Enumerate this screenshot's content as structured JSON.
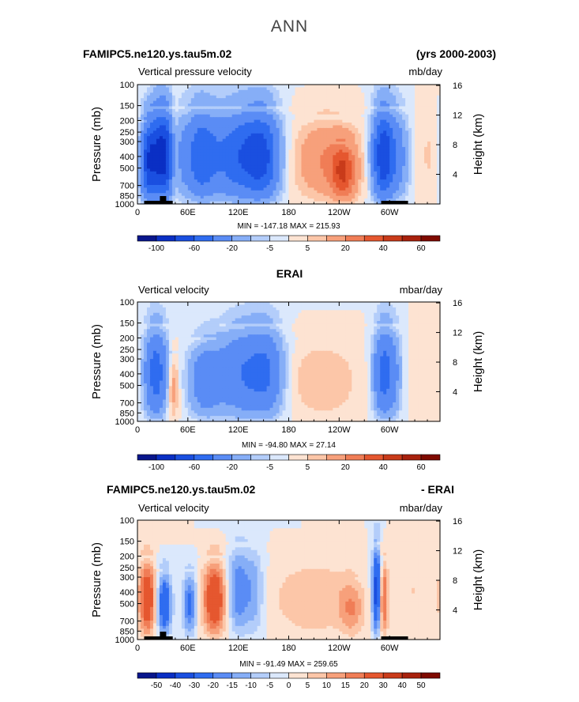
{
  "figure": {
    "title": "ANN",
    "colors": {
      "neg_strong": "#0a1a9a",
      "pos_strong": "#8a0000",
      "zero": "#ffffff",
      "coast": "#000000"
    }
  },
  "chart_data": [
    {
      "type": "heatmap",
      "title_left": "FAMIPC5.ne120.ys.tau5m.02",
      "title_right": "(yrs 2000-2003)",
      "variable": "Vertical pressure velocity",
      "units": "mb/day",
      "ylabel": "Pressure (mb)",
      "ylabel_right": "Height (km)",
      "xticks": [
        "0",
        "60E",
        "120E",
        "180",
        "120W",
        "60W"
      ],
      "xtick_values": [
        0,
        60,
        120,
        180,
        240,
        300
      ],
      "xlim": [
        0,
        360
      ],
      "yticks": [
        "100",
        "150",
        "200",
        "250",
        "300",
        "400",
        "500",
        "700",
        "850",
        "1000"
      ],
      "ytick_values": [
        100,
        150,
        200,
        250,
        300,
        400,
        500,
        700,
        850,
        1000
      ],
      "height_ticks": [
        "4",
        "8",
        "12",
        "16"
      ],
      "height_values": [
        4,
        8,
        12,
        16
      ],
      "min_text": "MIN = -147.18",
      "max_text": "MAX = 215.93",
      "colorbar_labels": [
        "-100",
        "-60",
        "-20",
        "-5",
        "5",
        "20",
        "40",
        "60"
      ],
      "colorbar_levels": 16,
      "features": [
        {
          "lon": 30,
          "amp": -95,
          "w": 13,
          "top": 150
        },
        {
          "lon": 12,
          "amp": -45,
          "w": 6,
          "top": 200
        },
        {
          "lon": 44,
          "amp": 35,
          "w": 5,
          "top": 150
        },
        {
          "lon": 75,
          "amp": -50,
          "w": 13,
          "top": 150
        },
        {
          "lon": 122,
          "amp": -55,
          "w": 24,
          "top": 150
        },
        {
          "lon": 150,
          "amp": -45,
          "w": 14,
          "top": 150
        },
        {
          "lon": 225,
          "amp": 20,
          "w": 28,
          "top": 180
        },
        {
          "lon": 245,
          "amp": 30,
          "w": 10,
          "top": 300
        },
        {
          "lon": 292,
          "amp": -75,
          "w": 9,
          "top": 150
        },
        {
          "lon": 310,
          "amp": -25,
          "w": 10,
          "top": 150
        },
        {
          "lon": 350,
          "amp": 6,
          "w": 15,
          "top": 150
        }
      ],
      "land": [
        [
          8,
          42
        ],
        [
          290,
          322
        ]
      ]
    },
    {
      "type": "heatmap",
      "title_center": "ERAI",
      "variable": "Vertical velocity",
      "units": "mbar/day",
      "ylabel": "Pressure (mb)",
      "ylabel_right": "Height (km)",
      "xticks": [
        "0",
        "60E",
        "120E",
        "180",
        "120W",
        "60W"
      ],
      "xtick_values": [
        0,
        60,
        120,
        180,
        240,
        300
      ],
      "xlim": [
        0,
        360
      ],
      "yticks": [
        "100",
        "150",
        "200",
        "250",
        "300",
        "400",
        "500",
        "700",
        "850",
        "1000"
      ],
      "ytick_values": [
        100,
        150,
        200,
        250,
        300,
        400,
        500,
        700,
        850,
        1000
      ],
      "height_ticks": [
        "4",
        "8",
        "12",
        "16"
      ],
      "height_values": [
        4,
        8,
        12,
        16
      ],
      "min_text": "MIN = -94.80",
      "max_text": "MAX = 27.14",
      "colorbar_labels": [
        "-100",
        "-60",
        "-20",
        "-5",
        "5",
        "20",
        "40",
        "60"
      ],
      "colorbar_levels": 16,
      "features": [
        {
          "lon": 22,
          "amp": -50,
          "w": 10,
          "top": 150
        },
        {
          "lon": 42,
          "amp": 18,
          "w": 5,
          "top": 250
        },
        {
          "lon": 80,
          "amp": -30,
          "w": 14,
          "top": 200
        },
        {
          "lon": 125,
          "amp": -38,
          "w": 22,
          "top": 150
        },
        {
          "lon": 155,
          "amp": -30,
          "w": 14,
          "top": 150
        },
        {
          "lon": 220,
          "amp": 10,
          "w": 30,
          "top": 200
        },
        {
          "lon": 292,
          "amp": -45,
          "w": 8,
          "top": 150
        },
        {
          "lon": 305,
          "amp": -20,
          "w": 7,
          "top": 150
        },
        {
          "lon": 350,
          "amp": 4,
          "w": 14,
          "top": 150
        }
      ],
      "land": []
    },
    {
      "type": "heatmap",
      "title_left": "FAMIPC5.ne120.ys.tau5m.02",
      "title_right": "- ERAI",
      "variable": "Vertical velocity",
      "units": "mbar/day",
      "ylabel": "Pressure (mb)",
      "ylabel_right": "Height (km)",
      "xticks": [
        "0",
        "60E",
        "120E",
        "180",
        "120W",
        "60W"
      ],
      "xtick_values": [
        0,
        60,
        120,
        180,
        240,
        300
      ],
      "xlim": [
        0,
        360
      ],
      "yticks": [
        "100",
        "150",
        "200",
        "250",
        "300",
        "400",
        "500",
        "700",
        "850",
        "1000"
      ],
      "ytick_values": [
        100,
        150,
        200,
        250,
        300,
        400,
        500,
        700,
        850,
        1000
      ],
      "height_ticks": [
        "4",
        "8",
        "12",
        "16"
      ],
      "height_values": [
        4,
        8,
        12,
        16
      ],
      "min_text": "MIN = -91.49",
      "max_text": "MAX = 259.65",
      "colorbar_labels": [
        "-50",
        "-40",
        "-30",
        "-20",
        "-15",
        "-10",
        "-5",
        "0",
        "5",
        "10",
        "15",
        "20",
        "30",
        "40",
        "50"
      ],
      "colorbar_levels": 16,
      "features": [
        {
          "lon": 12,
          "amp": 28,
          "w": 7,
          "top": 200
        },
        {
          "lon": 32,
          "amp": -30,
          "w": 6,
          "top": 250
        },
        {
          "lon": 62,
          "amp": -22,
          "w": 6,
          "top": 250
        },
        {
          "lon": 92,
          "amp": 30,
          "w": 10,
          "top": 200
        },
        {
          "lon": 120,
          "amp": -20,
          "w": 10,
          "top": 150
        },
        {
          "lon": 140,
          "amp": -12,
          "w": 8,
          "top": 150
        },
        {
          "lon": 210,
          "amp": 10,
          "w": 35,
          "top": 200
        },
        {
          "lon": 255,
          "amp": 12,
          "w": 10,
          "top": 300
        },
        {
          "lon": 285,
          "amp": -40,
          "w": 4,
          "top": 150
        },
        {
          "lon": 292,
          "amp": 25,
          "w": 4,
          "top": 200
        },
        {
          "lon": 330,
          "amp": 5,
          "w": 20,
          "top": 150
        }
      ],
      "land": [
        [
          8,
          42
        ],
        [
          290,
          322
        ]
      ]
    }
  ]
}
